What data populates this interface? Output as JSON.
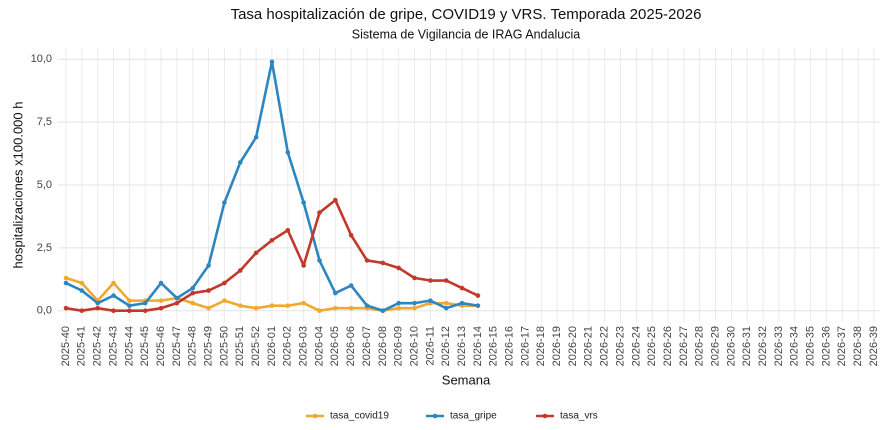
{
  "chart_data": {
    "type": "line",
    "title": "Tasa hospitalización de gripe, COVID19 y VRS. Temporada 2025-2026",
    "subtitle": "Sistema de Vigilancia de IRAG Andalucia",
    "x_label": "Semana",
    "y_label": "hospitalizaciones x100.000 h",
    "categories": [
      "2025-40",
      "2025-41",
      "2025-42",
      "2025-43",
      "2025-44",
      "2025-45",
      "2025-46",
      "2025-47",
      "2025-48",
      "2025-49",
      "2025-50",
      "2025-51",
      "2025-52",
      "2026-01",
      "2026-02",
      "2026-03",
      "2026-04",
      "2026-05",
      "2026-06",
      "2026-07",
      "2026-08",
      "2026-09",
      "2026-10",
      "2026-11",
      "2026-12",
      "2026-13",
      "2026-14",
      "2026-15",
      "2026-16",
      "2026-17",
      "2026-18",
      "2026-19",
      "2026-20",
      "2026-21",
      "2026-22",
      "2026-23",
      "2026-24",
      "2026-25",
      "2026-26",
      "2026-27",
      "2026-28",
      "2026-29",
      "2026-30",
      "2026-31",
      "2026-32",
      "2026-33",
      "2026-34",
      "2026-35",
      "2026-36",
      "2026-37",
      "2026-38",
      "2026-39"
    ],
    "series": [
      {
        "name": "tasa_covid19",
        "color": "#f0a830",
        "values": [
          1.3,
          1.1,
          0.4,
          1.1,
          0.4,
          0.4,
          0.4,
          0.5,
          0.3,
          0.1,
          0.4,
          0.2,
          0.1,
          0.2,
          0.2,
          0.3,
          0.0,
          0.1,
          0.1,
          0.1,
          0.0,
          0.1,
          0.1,
          0.3,
          0.3,
          0.2,
          0.2,
          null,
          null,
          null,
          null,
          null,
          null,
          null,
          null,
          null,
          null,
          null,
          null,
          null,
          null,
          null,
          null,
          null,
          null,
          null,
          null,
          null,
          null,
          null,
          null,
          null
        ]
      },
      {
        "name": "tasa_gripe",
        "color": "#2e86c1",
        "values": [
          1.1,
          0.8,
          0.3,
          0.6,
          0.2,
          0.3,
          1.1,
          0.5,
          0.9,
          1.8,
          4.3,
          5.9,
          6.9,
          9.9,
          6.3,
          4.3,
          2.0,
          0.7,
          1.0,
          0.2,
          0.0,
          0.3,
          0.3,
          0.4,
          0.1,
          0.3,
          0.2,
          null,
          null,
          null,
          null,
          null,
          null,
          null,
          null,
          null,
          null,
          null,
          null,
          null,
          null,
          null,
          null,
          null,
          null,
          null,
          null,
          null,
          null,
          null,
          null,
          null
        ]
      },
      {
        "name": "tasa_vrs",
        "color": "#c0392b",
        "values": [
          0.1,
          0.0,
          0.1,
          0.0,
          0.0,
          0.0,
          0.1,
          0.3,
          0.7,
          0.8,
          1.1,
          1.6,
          2.3,
          2.8,
          3.2,
          1.8,
          3.9,
          4.4,
          3.0,
          2.0,
          1.9,
          1.7,
          1.3,
          1.2,
          1.2,
          0.9,
          0.6,
          null,
          null,
          null,
          null,
          null,
          null,
          null,
          null,
          null,
          null,
          null,
          null,
          null,
          null,
          null,
          null,
          null,
          null,
          null,
          null,
          null,
          null,
          null,
          null,
          null
        ]
      }
    ],
    "ylim": [
      -0.45,
      10.45
    ],
    "yticks": [
      {
        "value": 0,
        "label": "0,0"
      },
      {
        "value": 2.5,
        "label": "2,5"
      },
      {
        "value": 5,
        "label": "5,0"
      },
      {
        "value": 7.5,
        "label": "7,5"
      },
      {
        "value": 10,
        "label": "10,0"
      }
    ],
    "grid": true,
    "legend": "bottom"
  }
}
